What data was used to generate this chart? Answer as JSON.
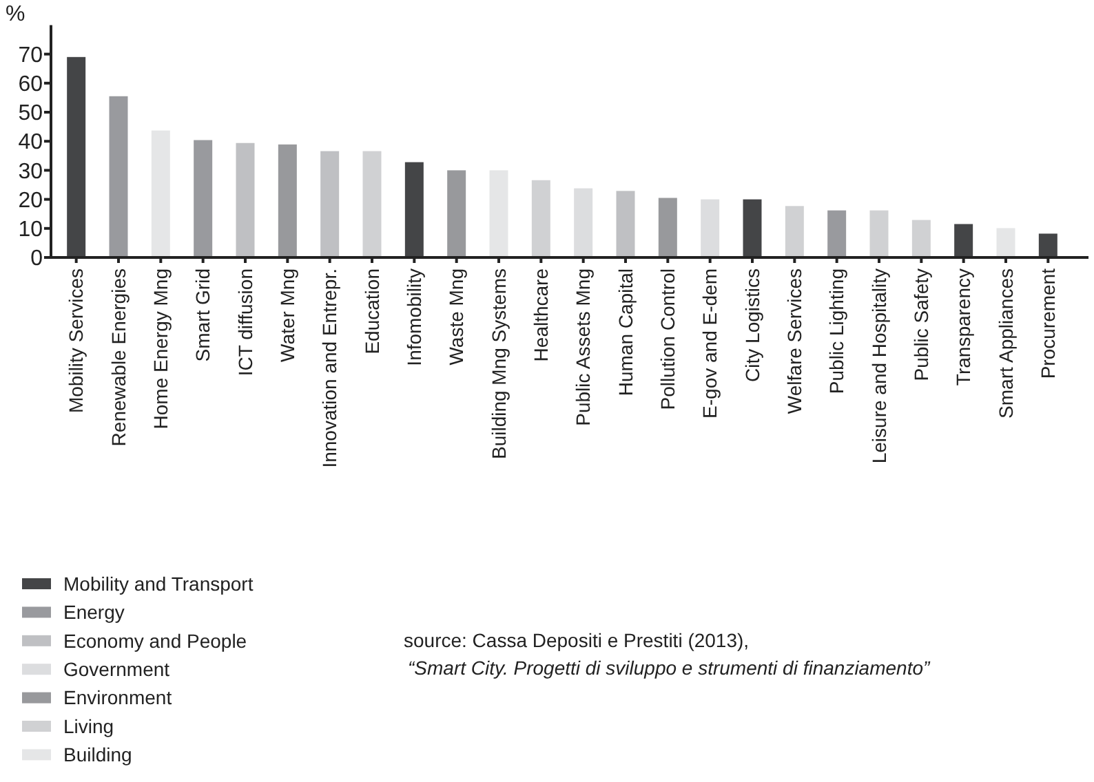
{
  "chart_data": {
    "type": "bar",
    "ylabel": "%",
    "stacked": true,
    "legend": "bottom left",
    "grid": false,
    "categories": [
      "Mobility Services",
      "Renewable Energies",
      "Home Energy Mng",
      "Smart Grid",
      "ICT diffusion",
      "Water Mng",
      "Innovation and Entrepr.",
      "Education",
      "Infomobility",
      "Waste Mng",
      "Building Mng Systems",
      "Healthcare",
      "Public Assets Mng",
      "Human Capital",
      "Pollution Control",
      "E-gov and E-dem",
      "City Logistics",
      "Welfare Services",
      "Public Lighting",
      "Leisure and Hospitality",
      "Public Safety",
      "Transparency",
      "Smart Appliances",
      "Procurement"
    ],
    "ylim": [
      0,
      80
    ],
    "yticks": [
      0,
      10,
      20,
      30,
      40,
      50,
      60,
      70
    ],
    "series": [
      {
        "name": "Mobility and Transport",
        "color": "#444547",
        "values": [
          69,
          null,
          null,
          null,
          null,
          null,
          null,
          null,
          32.8,
          null,
          null,
          null,
          null,
          null,
          null,
          null,
          20,
          null,
          null,
          null,
          null,
          11.5,
          null,
          8.2
        ]
      },
      {
        "name": "Energy",
        "color": "#999a9e",
        "values": [
          null,
          55.5,
          null,
          40.4,
          null,
          null,
          null,
          null,
          null,
          null,
          null,
          null,
          null,
          null,
          null,
          null,
          null,
          null,
          16.2,
          null,
          null,
          null,
          null,
          null
        ]
      },
      {
        "name": "Economy and People",
        "color": "#bfc0c3",
        "values": [
          null,
          null,
          null,
          null,
          39.4,
          null,
          36.6,
          null,
          null,
          null,
          null,
          null,
          null,
          22.9,
          null,
          null,
          null,
          null,
          null,
          null,
          null,
          null,
          null,
          null
        ]
      },
      {
        "name": "Government",
        "color": "#dcdddf",
        "values": [
          null,
          null,
          null,
          null,
          null,
          null,
          null,
          null,
          null,
          null,
          null,
          null,
          23.8,
          null,
          null,
          20,
          null,
          null,
          null,
          null,
          null,
          null,
          null,
          null
        ]
      },
      {
        "name": "Environment",
        "color": "#98999c",
        "values": [
          null,
          null,
          null,
          null,
          null,
          38.9,
          null,
          null,
          null,
          30,
          null,
          null,
          null,
          null,
          20.5,
          null,
          null,
          null,
          null,
          null,
          null,
          null,
          null,
          null
        ]
      },
      {
        "name": "Living",
        "color": "#d0d1d3",
        "values": [
          null,
          null,
          null,
          null,
          null,
          null,
          null,
          36.6,
          null,
          null,
          null,
          26.6,
          null,
          null,
          null,
          null,
          null,
          17.7,
          null,
          16.2,
          12.9,
          null,
          null,
          null
        ]
      },
      {
        "name": "Building",
        "color": "#e5e6e7",
        "values": [
          null,
          null,
          43.7,
          null,
          null,
          null,
          null,
          null,
          null,
          null,
          30,
          null,
          null,
          null,
          null,
          null,
          null,
          null,
          null,
          null,
          null,
          null,
          10.1,
          null
        ]
      }
    ],
    "annotations": [
      "source:  Cassa Depositi e Prestiti (2013),",
      "“Smart City. Progetti di sviluppo e strumenti di finanziamento”"
    ]
  }
}
